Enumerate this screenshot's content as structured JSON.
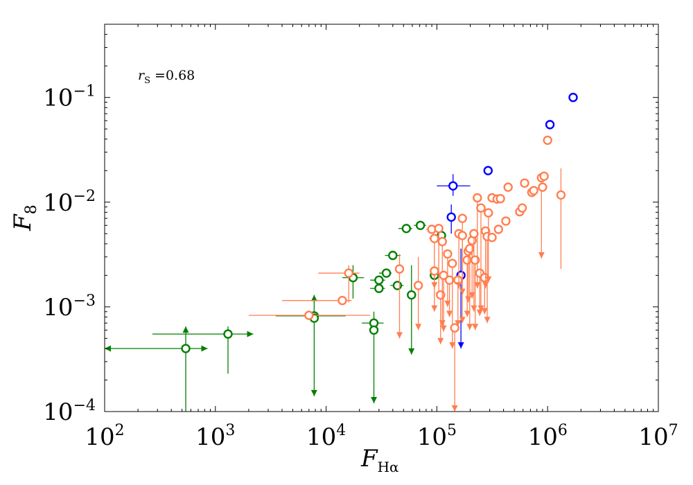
{
  "chart_data": {
    "type": "scatter",
    "xscale": "log",
    "yscale": "log",
    "xlim": [
      100,
      10000000
    ],
    "ylim": [
      0.0001,
      0.5
    ],
    "xlabel": "F_{Hα}",
    "xlabel_main": "F",
    "xlabel_sub": "Hα",
    "ylabel": "F_8",
    "ylabel_main": "F",
    "ylabel_sub": "8",
    "x_tick_labels": [
      {
        "value": 100,
        "base": "10",
        "exp": "2"
      },
      {
        "value": 1000,
        "base": "10",
        "exp": "3"
      },
      {
        "value": 10000,
        "base": "10",
        "exp": "4"
      },
      {
        "value": 100000,
        "base": "10",
        "exp": "5"
      },
      {
        "value": 1000000,
        "base": "10",
        "exp": "6"
      },
      {
        "value": 10000000,
        "base": "10",
        "exp": "7"
      }
    ],
    "y_tick_labels": [
      {
        "value": 0.0001,
        "base": "10",
        "exp": "−4"
      },
      {
        "value": 0.001,
        "base": "10",
        "exp": "−3"
      },
      {
        "value": 0.01,
        "base": "10",
        "exp": "−2"
      },
      {
        "value": 0.1,
        "base": "10",
        "exp": "−1"
      }
    ],
    "annotation": {
      "main": "r",
      "sub": "S",
      "text": " =0.68"
    },
    "series": [
      {
        "name": "blue",
        "color": "#0000ff",
        "points": [
          {
            "x": 1700000,
            "y": 0.1
          },
          {
            "x": 1050000,
            "y": 0.055
          },
          {
            "x": 290000,
            "y": 0.02
          },
          {
            "x": 140000,
            "y": 0.0143,
            "xerr": [
              100000,
              200000
            ],
            "yerr": [
              0.0115,
              0.0185
            ]
          },
          {
            "x": 135000,
            "y": 0.0072,
            "yerr": [
              0.005,
              0.0095
            ]
          },
          {
            "x": 165000,
            "y": 0.002,
            "yerr": [
              0.0004,
              0.0036
            ],
            "upper": true
          }
        ]
      },
      {
        "name": "green",
        "color": "#007f00",
        "points": [
          {
            "x": 540,
            "y": 0.0004,
            "xerr": [
              100,
              850
            ],
            "yerr": [
              0.0001,
              0.00065
            ],
            "xlower": true,
            "xupper": true,
            "ylower": true
          },
          {
            "x": 1300,
            "y": 0.00055,
            "xerr": [
              270,
              2200
            ],
            "yerr": [
              0.00023,
              0.00065
            ],
            "xupper": true
          },
          {
            "x": 7800,
            "y": 0.00082,
            "xerr": [
              3500,
              15000
            ],
            "yerr": [
              0.00014,
              0.0013
            ],
            "ylower": true,
            "upper": true
          },
          {
            "x": 7800,
            "y": 0.00078
          },
          {
            "x": 17500,
            "y": 0.0019,
            "xerr": [
              14000,
              22000
            ],
            "yerr": [
              0.0012,
              0.0025
            ]
          },
          {
            "x": 27000,
            "y": 0.0007,
            "xerr": [
              21000,
              33000
            ],
            "yerr": [
              0.00012,
              0.0009
            ],
            "upper": true
          },
          {
            "x": 27000,
            "y": 0.0006
          },
          {
            "x": 30000,
            "y": 0.0018,
            "xerr": [
              25000,
              34000
            ]
          },
          {
            "x": 30000,
            "y": 0.0015,
            "xerr": [
              25000,
              34000
            ]
          },
          {
            "x": 35000,
            "y": 0.0021,
            "xerr": [
              30000,
              39000
            ]
          },
          {
            "x": 40000,
            "y": 0.0031,
            "xerr": [
              34000,
              47000
            ]
          },
          {
            "x": 44000,
            "y": 0.0016,
            "xerr": [
              38000,
              50000
            ]
          },
          {
            "x": 53000,
            "y": 0.0056,
            "xerr": [
              45000,
              60000
            ]
          },
          {
            "x": 59000,
            "y": 0.0013,
            "yerr": [
              0.00035,
              0.0025
            ],
            "upper": true
          },
          {
            "x": 71000,
            "y": 0.006,
            "xerr": [
              62000,
              80000
            ]
          },
          {
            "x": 110000,
            "y": 0.0048,
            "xerr": [
              100000,
              120000
            ]
          },
          {
            "x": 95000,
            "y": 0.002,
            "yerr": [
              0.0017,
              0.0023
            ]
          }
        ]
      },
      {
        "name": "orange",
        "color": "#ff7f50",
        "points": [
          {
            "x": 7000,
            "y": 0.00083,
            "xerr": [
              2000,
              25000
            ]
          },
          {
            "x": 14000,
            "y": 0.00115,
            "xerr": [
              4000,
              17000
            ]
          },
          {
            "x": 16000,
            "y": 0.0021,
            "xerr": [
              8500,
              20000
            ],
            "yerr": [
              0.0011,
              0.0025
            ]
          },
          {
            "x": 46000,
            "y": 0.0023,
            "yerr": [
              0.0005,
              0.0032
            ],
            "upper": true
          },
          {
            "x": 68000,
            "y": 0.0016,
            "yerr": [
              0.0006,
              0.003
            ],
            "upper": true
          },
          {
            "x": 90000,
            "y": 0.0055,
            "xerr": [
              80000,
              100000
            ]
          },
          {
            "x": 95000,
            "y": 0.0045,
            "xerr": [
              85000,
              105000
            ],
            "upper": true,
            "yerr": [
              0.0015,
              0.0045
            ]
          },
          {
            "x": 95000,
            "y": 0.0022,
            "upper": true,
            "yerr": [
              0.0009,
              0.0022
            ]
          },
          {
            "x": 104000,
            "y": 0.0056,
            "upper": true,
            "yerr": [
              0.0012,
              0.0056
            ]
          },
          {
            "x": 108000,
            "y": 0.0013,
            "upper": true,
            "yerr": [
              0.00044,
              0.0013
            ]
          },
          {
            "x": 112000,
            "y": 0.0042,
            "upper": true,
            "yerr": [
              0.00065,
              0.0042
            ]
          },
          {
            "x": 115000,
            "y": 0.002,
            "upper": true,
            "yerr": [
              0.00058,
              0.002
            ]
          },
          {
            "x": 125000,
            "y": 0.0032,
            "upper": true,
            "yerr": [
              0.001,
              0.0032
            ]
          },
          {
            "x": 130000,
            "y": 0.0018,
            "upper": true,
            "yerr": [
              0.0008,
              0.0018
            ]
          },
          {
            "x": 138000,
            "y": 0.0026,
            "upper": true,
            "yerr": [
              0.0004,
              0.0026
            ]
          },
          {
            "x": 145000,
            "y": 0.00063,
            "upper": true,
            "yerr": [
              0.0001,
              0.00063
            ]
          },
          {
            "x": 155000,
            "y": 0.0018,
            "upper": true,
            "yerr": [
              0.00065,
              0.0018
            ]
          },
          {
            "x": 158000,
            "y": 0.005,
            "upper": true,
            "yerr": [
              0.0015,
              0.005
            ]
          },
          {
            "x": 170000,
            "y": 0.007,
            "upper": true,
            "yerr": [
              0.0013,
              0.007
            ]
          },
          {
            "x": 170000,
            "y": 0.0048,
            "upper": true,
            "yerr": [
              0.0007,
              0.0048
            ]
          },
          {
            "x": 188000,
            "y": 0.0028,
            "upper": true,
            "yerr": [
              0.0008,
              0.0028
            ]
          },
          {
            "x": 192000,
            "y": 0.0034,
            "upper": true,
            "yerr": [
              0.0011,
              0.0034
            ]
          },
          {
            "x": 198000,
            "y": 0.0036,
            "upper": true,
            "yerr": [
              0.0006,
              0.0036
            ]
          },
          {
            "x": 208000,
            "y": 0.0043,
            "upper": true,
            "yerr": [
              0.0012,
              0.0043
            ]
          },
          {
            "x": 216000,
            "y": 0.005,
            "upper": true,
            "yerr": [
              0.0009,
              0.005
            ]
          },
          {
            "x": 222000,
            "y": 0.0028,
            "upper": true,
            "yerr": [
              0.0006,
              0.0028
            ]
          },
          {
            "x": 232000,
            "y": 0.011,
            "upper": true,
            "yerr": [
              0.0015,
              0.011
            ]
          },
          {
            "x": 244000,
            "y": 0.0021,
            "upper": true,
            "yerr": [
              0.00082,
              0.0021
            ]
          },
          {
            "x": 250000,
            "y": 0.0088,
            "upper": true,
            "yerr": [
              0.0009,
              0.0088
            ]
          },
          {
            "x": 270000,
            "y": 0.0019,
            "upper": true,
            "yerr": [
              0.00085,
              0.0019
            ]
          },
          {
            "x": 275000,
            "y": 0.0053,
            "upper": true,
            "yerr": [
              0.0015,
              0.0053
            ]
          },
          {
            "x": 285000,
            "y": 0.0047,
            "upper": true,
            "yerr": [
              0.0007,
              0.0047
            ]
          },
          {
            "x": 292000,
            "y": 0.0079,
            "upper": true,
            "yerr": [
              0.0017,
              0.0079
            ]
          },
          {
            "x": 315000,
            "y": 0.0046
          },
          {
            "x": 315000,
            "y": 0.011
          },
          {
            "x": 350000,
            "y": 0.0107
          },
          {
            "x": 360000,
            "y": 0.0055
          },
          {
            "x": 375000,
            "y": 0.0108
          },
          {
            "x": 420000,
            "y": 0.0066
          },
          {
            "x": 440000,
            "y": 0.0139
          },
          {
            "x": 560000,
            "y": 0.0081
          },
          {
            "x": 590000,
            "y": 0.0088
          },
          {
            "x": 620000,
            "y": 0.0152
          },
          {
            "x": 720000,
            "y": 0.0124
          },
          {
            "x": 750000,
            "y": 0.0129
          },
          {
            "x": 880000,
            "y": 0.0171,
            "upper": true,
            "yerr": [
              0.0029,
              0.0171
            ]
          },
          {
            "x": 900000,
            "y": 0.0139
          },
          {
            "x": 930000,
            "y": 0.0177
          },
          {
            "x": 1000000,
            "y": 0.039
          },
          {
            "x": 1320000,
            "y": 0.0117,
            "yerr": [
              0.0023,
              0.021
            ]
          }
        ]
      }
    ]
  }
}
